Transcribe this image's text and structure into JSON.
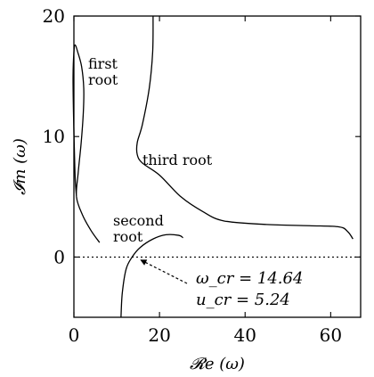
{
  "chart_data": {
    "type": "line",
    "xlabel": "𝓡e (ω)",
    "ylabel": "𝓘m (ω)",
    "xlim": [
      0,
      67
    ],
    "ylim": [
      -5,
      20
    ],
    "x_ticks": [
      "0",
      "20",
      "40",
      "60"
    ],
    "y_ticks": [
      "0",
      "10",
      "20"
    ],
    "zero_line": "dotted",
    "series": [
      {
        "name": "first root",
        "points": [
          [
            6,
            1.2
          ],
          [
            4,
            2.2
          ],
          [
            2,
            3.5
          ],
          [
            0.6,
            5
          ],
          [
            1,
            7
          ],
          [
            1.7,
            9.5
          ],
          [
            2.2,
            12
          ],
          [
            2.3,
            14
          ],
          [
            1.8,
            15.8
          ],
          [
            0.9,
            17
          ],
          [
            0.3,
            17.6
          ],
          [
            0,
            17
          ],
          [
            -0.2,
            15
          ],
          [
            -0.1,
            12
          ],
          [
            0.1,
            9
          ],
          [
            0.3,
            6.5
          ],
          [
            0.6,
            5
          ]
        ]
      },
      {
        "name": "second root",
        "points": [
          [
            11,
            -5
          ],
          [
            11.3,
            -3
          ],
          [
            12.2,
            -1
          ],
          [
            13.6,
            0
          ],
          [
            15.5,
            0.8
          ],
          [
            18.5,
            1.5
          ],
          [
            21.5,
            1.85
          ],
          [
            24.5,
            1.8
          ],
          [
            25.5,
            1.6
          ]
        ]
      },
      {
        "name": "third root",
        "points": [
          [
            18.5,
            20
          ],
          [
            18.4,
            17
          ],
          [
            17.6,
            14
          ],
          [
            16,
            11
          ],
          [
            14.8,
            9.5
          ],
          [
            14.8,
            8.5
          ],
          [
            16,
            7.8
          ],
          [
            20,
            6.8
          ],
          [
            25,
            5
          ],
          [
            30,
            3.8
          ],
          [
            35,
            3
          ],
          [
            45,
            2.7
          ],
          [
            55,
            2.6
          ],
          [
            62,
            2.5
          ],
          [
            64,
            2.1
          ],
          [
            65.2,
            1.5
          ]
        ]
      }
    ],
    "annotations": {
      "first_root": [
        "first",
        "root"
      ],
      "second_root": [
        "second",
        "root"
      ],
      "third_root": "third root",
      "omega_cr": "ω_cr = 14.64",
      "u_cr": "u_cr = 5.24",
      "arrow_target": [
        14.64,
        0
      ]
    }
  }
}
